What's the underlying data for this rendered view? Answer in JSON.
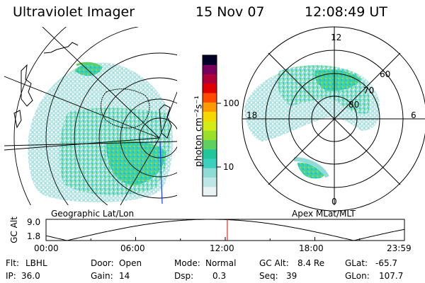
{
  "header": {
    "instrument": "Ultraviolet Imager",
    "date": "15 Nov 07",
    "time": "12:08:49 UT"
  },
  "left_panel": {
    "caption": "Geographic Lat/Lon",
    "projection": "geographic"
  },
  "right_panel": {
    "caption": "Apex MLat/MLT",
    "mlt_labels": {
      "top": "12",
      "left": "18",
      "right": "6",
      "bottom": "0"
    },
    "mlat_labels": [
      "60",
      "70",
      "80"
    ]
  },
  "colorbar": {
    "label": "photon cm⁻²s⁻¹",
    "ticks": [
      "100",
      "10"
    ],
    "colors": [
      "#e9f4f4",
      "#bfe6e6",
      "#8fdcd6",
      "#3ccfc0",
      "#21c79a",
      "#5fd060",
      "#9ae02a",
      "#d4ec14",
      "#f6d800",
      "#ff9a00",
      "#ff4a00",
      "#e00000",
      "#b0003a",
      "#7a0060",
      "#000028"
    ]
  },
  "altitude_plot": {
    "ylabel": "GC Alt",
    "ymax_label": "9.0",
    "ymin_label": "1.8",
    "x_ticks": [
      "00:00",
      "06:00",
      "12:00",
      "18:00",
      "23:59"
    ],
    "marker_time_hours": 12.14,
    "marker_color": "#e00000"
  },
  "status": {
    "flt_label": "Flt:",
    "flt_value": "LBHL",
    "door_label": "Door:",
    "door_value": "Open",
    "mode_label": "Mode:",
    "mode_value": "Normal",
    "gcalt_label": "GC Alt:",
    "gcalt_value": "8.4 Re",
    "glat_label": "GLat:",
    "glat_value": "-65.7",
    "ip_label": "IP:",
    "ip_value": "36.0",
    "gain_label": "Gain:",
    "gain_value": "14",
    "dsp_label": "Dsp:",
    "dsp_value": "0.3",
    "seq_label": "Seq:",
    "seq_value": "39",
    "glon_label": "GLon:",
    "glon_value": "107.7"
  }
}
